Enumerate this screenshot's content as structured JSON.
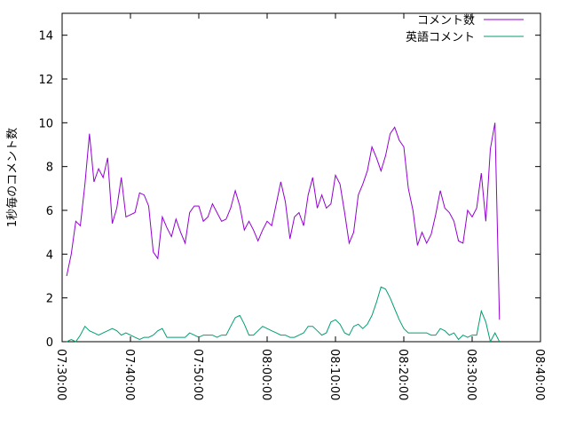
{
  "chart_data": {
    "type": "line",
    "y_label": "1秒毎のコメント数",
    "x": [
      "07:30:40",
      "07:31:20",
      "07:32:00",
      "07:32:40",
      "07:33:20",
      "07:34:00",
      "07:34:40",
      "07:35:20",
      "07:36:00",
      "07:36:40",
      "07:37:20",
      "07:38:00",
      "07:38:40",
      "07:39:20",
      "07:40:00",
      "07:40:40",
      "07:41:20",
      "07:42:00",
      "07:42:40",
      "07:43:20",
      "07:44:00",
      "07:44:40",
      "07:45:20",
      "07:46:00",
      "07:46:40",
      "07:47:20",
      "07:48:00",
      "07:48:40",
      "07:49:20",
      "07:50:00",
      "07:50:40",
      "07:51:20",
      "07:52:00",
      "07:52:40",
      "07:53:20",
      "07:54:00",
      "07:54:40",
      "07:55:20",
      "07:56:00",
      "07:56:40",
      "07:57:20",
      "07:58:00",
      "07:58:40",
      "07:59:20",
      "08:00:00",
      "08:00:40",
      "08:01:20",
      "08:02:00",
      "08:02:40",
      "08:03:20",
      "08:04:00",
      "08:04:40",
      "08:05:20",
      "08:06:00",
      "08:06:40",
      "08:07:20",
      "08:08:00",
      "08:08:40",
      "08:09:20",
      "08:10:00",
      "08:10:40",
      "08:11:20",
      "08:12:00",
      "08:12:40",
      "08:13:20",
      "08:14:00",
      "08:14:40",
      "08:15:20",
      "08:16:00",
      "08:16:40",
      "08:17:20",
      "08:18:00",
      "08:18:40",
      "08:19:20",
      "08:20:00",
      "08:20:40",
      "08:21:20",
      "08:22:00",
      "08:22:40",
      "08:23:20",
      "08:24:00",
      "08:24:40",
      "08:25:20",
      "08:26:00",
      "08:26:40",
      "08:27:20",
      "08:28:00",
      "08:28:40",
      "08:29:20",
      "08:30:00",
      "08:30:40",
      "08:31:20",
      "08:32:00",
      "08:32:40",
      "08:33:20",
      "08:34:00"
    ],
    "series": [
      {
        "name": "コメント数",
        "color": "#9400d3",
        "values": [
          3.0,
          4.0,
          5.5,
          5.3,
          7.2,
          9.5,
          7.3,
          7.9,
          7.5,
          8.4,
          5.4,
          6.1,
          7.5,
          5.7,
          5.8,
          5.9,
          6.8,
          6.7,
          6.2,
          4.1,
          3.8,
          5.7,
          5.2,
          4.8,
          5.6,
          5.0,
          4.5,
          5.9,
          6.2,
          6.2,
          5.5,
          5.7,
          6.3,
          5.9,
          5.5,
          5.6,
          6.1,
          6.9,
          6.2,
          5.1,
          5.5,
          5.1,
          4.6,
          5.1,
          5.5,
          5.3,
          6.3,
          7.3,
          6.4,
          4.7,
          5.7,
          5.9,
          5.3,
          6.7,
          7.5,
          6.1,
          6.7,
          6.1,
          6.3,
          7.6,
          7.2,
          5.9,
          4.5,
          5.0,
          6.7,
          7.2,
          7.8,
          8.9,
          8.4,
          7.8,
          8.5,
          9.5,
          9.8,
          9.2,
          8.9,
          7.0,
          6.0,
          4.4,
          5.0,
          4.5,
          4.9,
          5.8,
          6.9,
          6.1,
          5.9,
          5.5,
          4.6,
          4.5,
          6.0,
          5.7,
          6.1,
          7.7,
          5.5,
          8.8,
          10.0,
          1.0
        ]
      },
      {
        "name": "英語コメント",
        "color": "#009e73",
        "values": [
          0.0,
          0.1,
          0.0,
          0.3,
          0.7,
          0.5,
          0.4,
          0.3,
          0.4,
          0.5,
          0.6,
          0.5,
          0.3,
          0.4,
          0.3,
          0.2,
          0.1,
          0.2,
          0.2,
          0.3,
          0.5,
          0.6,
          0.2,
          0.2,
          0.2,
          0.2,
          0.2,
          0.4,
          0.3,
          0.2,
          0.3,
          0.3,
          0.3,
          0.2,
          0.3,
          0.3,
          0.7,
          1.1,
          1.2,
          0.8,
          0.3,
          0.3,
          0.5,
          0.7,
          0.6,
          0.5,
          0.4,
          0.3,
          0.3,
          0.2,
          0.2,
          0.3,
          0.4,
          0.7,
          0.7,
          0.5,
          0.3,
          0.4,
          0.9,
          1.0,
          0.8,
          0.4,
          0.3,
          0.7,
          0.8,
          0.6,
          0.8,
          1.2,
          1.8,
          2.5,
          2.4,
          2.0,
          1.5,
          1.0,
          0.6,
          0.4,
          0.4,
          0.4,
          0.4,
          0.4,
          0.3,
          0.3,
          0.6,
          0.5,
          0.3,
          0.4,
          0.1,
          0.3,
          0.2,
          0.3,
          0.3,
          1.4,
          0.9,
          0.0,
          0.4,
          0.0
        ]
      }
    ],
    "xlim": [
      "07:30:00",
      "08:40:00"
    ],
    "xticks": [
      "07:30:00",
      "07:40:00",
      "07:50:00",
      "08:00:00",
      "08:10:00",
      "08:20:00",
      "08:30:00",
      "08:40:00"
    ],
    "ylim": [
      0,
      15
    ],
    "yticks": [
      0,
      2,
      4,
      6,
      8,
      10,
      12,
      14
    ],
    "legend": "top-right",
    "grid": false
  }
}
